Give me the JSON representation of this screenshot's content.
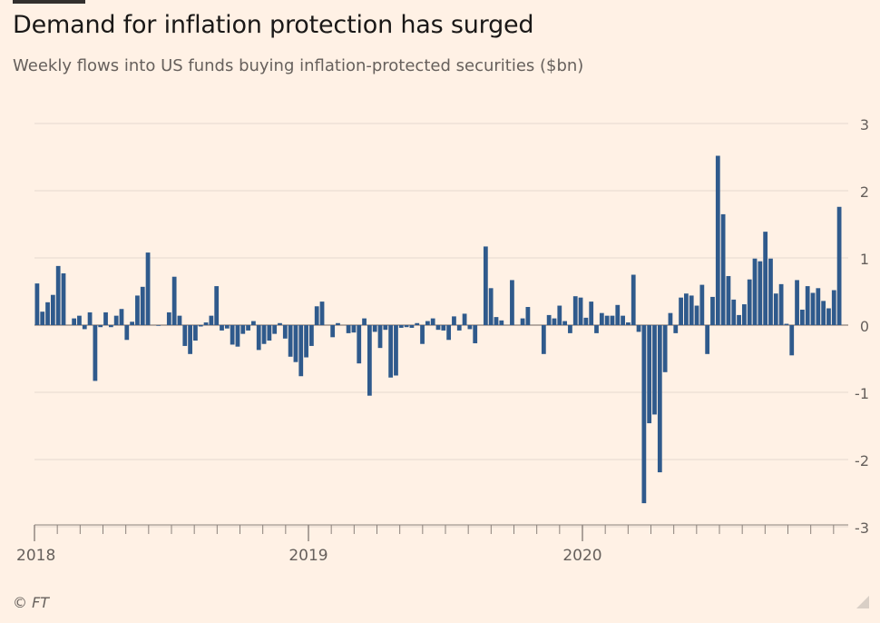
{
  "title": "Demand for inflation protection has surged",
  "subtitle": "Weekly flows into US funds buying inflation-protected securities ($bn)",
  "source": "© FT",
  "chart_data": {
    "type": "bar",
    "x_tick_labels": [
      "2018",
      "2019",
      "2020"
    ],
    "y_ticks": [
      3,
      2,
      1,
      0,
      -1,
      -2,
      -3
    ],
    "y_tick_labels": [
      "3",
      "2",
      "1",
      "0",
      "-1",
      "-2",
      "-3"
    ],
    "ylim": [
      -3,
      3
    ],
    "grid": true,
    "y_axis_position": "right",
    "bar_color": "#2f5a8c",
    "series": [
      {
        "values": [
          0.62,
          0.2,
          0.34,
          0.45,
          0.88,
          0.77,
          0,
          0.1,
          0.14,
          -0.06,
          0.19,
          -0.83,
          -0.03,
          0.19,
          -0.03,
          0.14,
          0.24,
          -0.22,
          0.05,
          0.44,
          0.57,
          1.08,
          0,
          -0.01,
          0,
          0.19,
          0.72,
          0.14,
          -0.31,
          -0.43,
          -0.23,
          -0.02,
          0.04,
          0.14,
          0.58,
          -0.08,
          -0.05,
          -0.29,
          -0.32,
          -0.13,
          -0.08,
          0.06,
          -0.37,
          -0.28,
          -0.23,
          -0.13,
          0.03,
          -0.2,
          -0.47,
          -0.55,
          -0.76,
          -0.48,
          -0.31,
          0.28,
          0.35,
          0,
          -0.18,
          0.03,
          0.0,
          -0.12,
          -0.11,
          -0.57,
          0.1,
          -1.05,
          -0.1,
          -0.34,
          -0.07,
          -0.78,
          -0.75,
          -0.04,
          -0.03,
          -0.04,
          0.03,
          -0.28,
          0.06,
          0.1,
          -0.07,
          -0.08,
          -0.22,
          0.13,
          -0.08,
          0.17,
          -0.06,
          -0.27,
          0,
          1.17,
          0.55,
          0.12,
          0.07,
          0,
          0.67,
          0,
          0.1,
          0.27,
          0,
          0,
          -0.43,
          0.15,
          0.1,
          0.29,
          0.06,
          -0.12,
          0.43,
          0.41,
          0.11,
          0.35,
          -0.12,
          0.18,
          0.14,
          0.14,
          0.3,
          0.14,
          0.04,
          0.75,
          -0.1,
          -2.65,
          -1.46,
          -1.33,
          -2.19,
          -0.7,
          0.18,
          -0.12,
          0.41,
          0.47,
          0.44,
          0.29,
          0.6,
          -0.43,
          0.42,
          2.52,
          1.65,
          0.73,
          0.38,
          0.15,
          0.31,
          0.68,
          0.99,
          0.95,
          1.39,
          0.99,
          0.47,
          0.61,
          0.02,
          -0.45,
          0.67,
          0.23,
          0.58,
          0.48,
          0.55,
          0.36,
          0.25,
          0.52,
          1.76
        ]
      }
    ]
  }
}
